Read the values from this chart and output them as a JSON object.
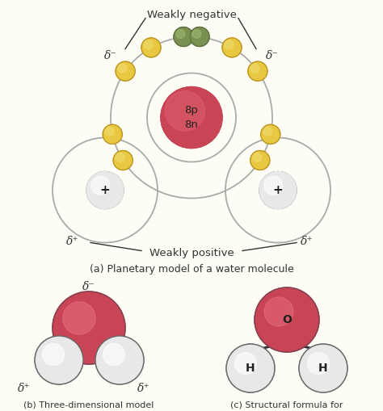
{
  "bg_color": "#fdfdf5",
  "annotation_color": "#333333",
  "nucleus_color": "#c94455",
  "nucleus_text": "8p\n8n",
  "nucleus_text_color": "#222222",
  "electron_color_yellow": "#e8c840",
  "electron_color_green": "#7a9050",
  "electron_outline": "#c8a820",
  "hydrogen_nucleus_color": "#e8e8e8",
  "orbit_color": "#aaaaaa",
  "weakly_negative_text": "Weakly negative",
  "weakly_positive_text": "Weakly positive",
  "caption_a": "(a) Planetary model of a water molecule",
  "caption_b": "(b) Three-dimensional model\nof a water molecule",
  "caption_c": "(c) Structural formula for\nwater molecule",
  "delta_minus": "δ⁻",
  "delta_plus": "δ⁺",
  "label_plus": "+",
  "label_O": "O",
  "label_H": "H",
  "oxygen_3d_color": "#c94455",
  "hydrogen_3d_color": "#e8e8e8",
  "bond_color": "#333333"
}
